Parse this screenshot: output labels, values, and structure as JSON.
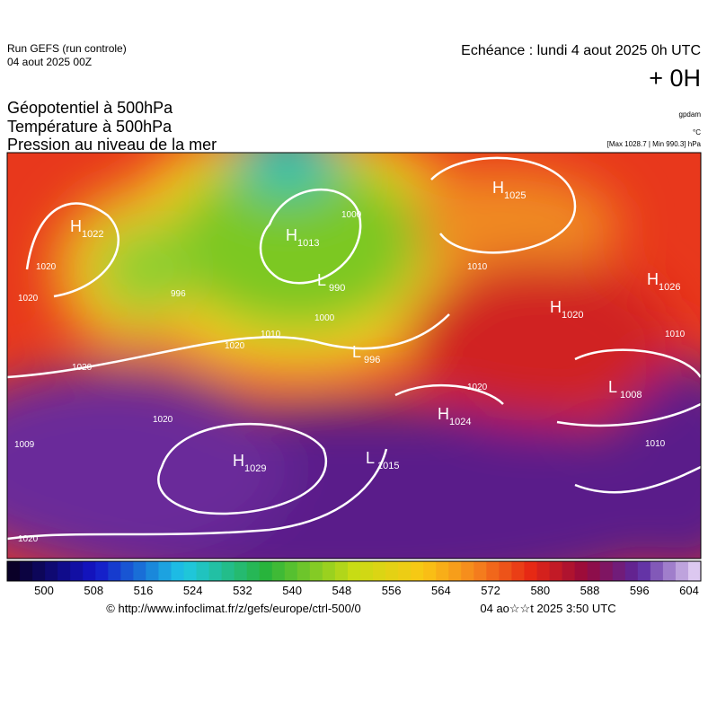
{
  "header": {
    "run": "Run GEFS (run controle)",
    "run_date": "04 aout 2025 00Z",
    "valid": "Echéance : lundi 4 aout 2025 0h UTC",
    "lead": "+ 0H",
    "fields": [
      "Géopotentiel à 500hPa",
      "Température à 500hPa",
      "Pression au niveau de la mer"
    ],
    "unit_geo": "gpdam",
    "unit_temp": "°C",
    "pressure_range": "[Max 1028.7 | Min 990.3] hPa"
  },
  "systems": [
    {
      "letter": "H",
      "value": "1022"
    },
    {
      "letter": "H",
      "value": "1013"
    },
    {
      "letter": "L",
      "value": "990"
    },
    {
      "letter": "H",
      "value": "1025"
    },
    {
      "letter": "H",
      "value": "1026"
    },
    {
      "letter": "H",
      "value": "1020"
    },
    {
      "letter": "L",
      "value": "996"
    },
    {
      "letter": "H",
      "value": "1024"
    },
    {
      "letter": "L",
      "value": "1008"
    },
    {
      "letter": "H",
      "value": "1029"
    },
    {
      "letter": "L",
      "value": "1015"
    }
  ],
  "contour_labels": [
    "1020",
    "996",
    "1020",
    "1010",
    "1000",
    "1020",
    "1020",
    "1009",
    "1020",
    "1010",
    "1010",
    "1000",
    "1020",
    "1010",
    "1020"
  ],
  "colorbar": {
    "labels": [
      "500",
      "508",
      "516",
      "524",
      "532",
      "540",
      "548",
      "556",
      "564",
      "572",
      "580",
      "588",
      "596",
      "604"
    ]
  },
  "footer": {
    "url": "© http://www.infoclimat.fr/z/gefs/europe/ctrl-500/0",
    "generated": "04 ao☆☆t 2025  3:50 UTC"
  }
}
